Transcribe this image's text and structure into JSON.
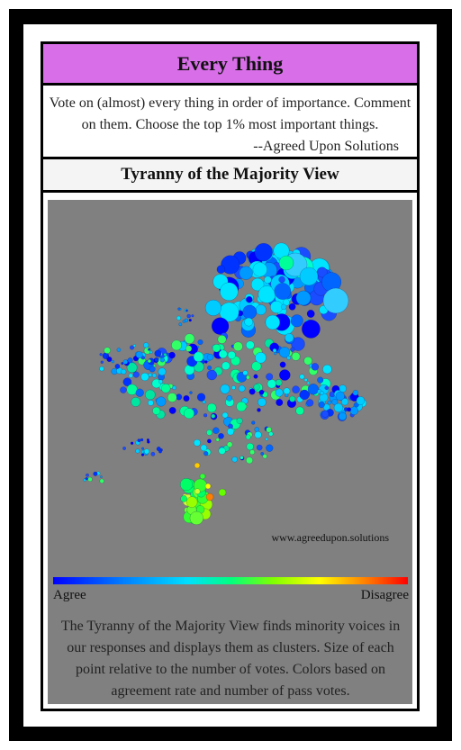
{
  "card": {
    "title": "Every Thing",
    "intro_text": "Vote on (almost) every thing in order of importance. Comment on them. Choose the top 1% most important things.",
    "attribution": "--Agreed Upon Solutions",
    "section_title": "Tyranny of the Majority View"
  },
  "visualization": {
    "watermark": "www.agreedupon.solutions",
    "scale_left_label": "Agree",
    "scale_right_label": "Disagree",
    "description": "The Tyranny of the Majority View finds minority voices in our responses and displays them as clusters. Size of each point relative to the number of votes. Colors based on agreement rate and number of pass votes.",
    "colors": {
      "panel_background": "#808080",
      "title_bar": "#d86ee8",
      "scale_gradient": [
        "#0000ff",
        "#0080ff",
        "#00e0ff",
        "#00ff80",
        "#80ff00",
        "#ffff00",
        "#ff8000",
        "#ff0000"
      ]
    }
  }
}
